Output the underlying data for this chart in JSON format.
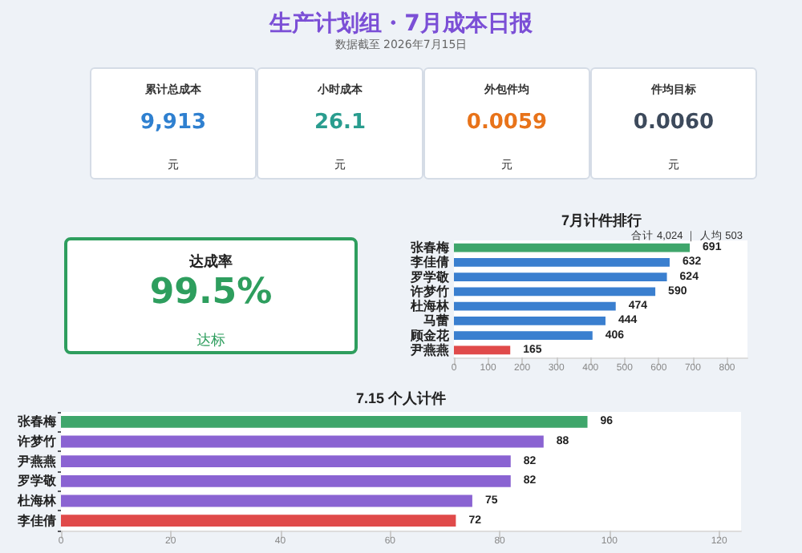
{
  "chart_data": [
    {
      "type": "other",
      "title": "生产计划组・7月成本日报",
      "subtitle": "数据截至 2026年7月15日",
      "categories": [
        "累计总成本",
        "小时成本",
        "外包件均",
        "件均目标"
      ],
      "value_labels": [
        "9,913",
        "26.1",
        "0.0059",
        "0.0060"
      ],
      "annotations": [
        "元",
        "元",
        "元",
        "元"
      ]
    },
    {
      "type": "other",
      "title": "达成率",
      "value_labels": [
        "99.5%"
      ],
      "color": "#2e9e5e",
      "annotations": [
        "达标"
      ]
    },
    {
      "type": "bar",
      "orientation": "horizontal",
      "title": "7月计件排行",
      "subtitle": "合计 4,024 ｜ 人均 503",
      "categories": [
        "张春梅",
        "李佳倩",
        "罗学敬",
        "许梦竹",
        "杜海林",
        "马蕾",
        "顾金花",
        "尹燕燕"
      ],
      "values": [
        691,
        632,
        624,
        590,
        474,
        444,
        406,
        165
      ],
      "colors": [
        "#3fa66b",
        "#3a7fcf",
        "#3a7fcf",
        "#3a7fcf",
        "#3a7fcf",
        "#3a7fcf",
        "#3a7fcf",
        "#e04a4a"
      ],
      "xlim": [
        0,
        860
      ],
      "xticks": [
        0,
        100,
        200,
        300,
        400,
        500,
        600,
        700,
        800
      ],
      "data_labels": true,
      "grid": false
    },
    {
      "type": "bar",
      "orientation": "horizontal",
      "title": "7.15 个人计件",
      "categories": [
        "张春梅",
        "许梦竹",
        "尹燕燕",
        "罗学敬",
        "杜海林",
        "李佳倩"
      ],
      "values": [
        96,
        88,
        82,
        82,
        75,
        72
      ],
      "colors": [
        "#3fa66b",
        "#8a63d2",
        "#8a63d2",
        "#8a63d2",
        "#8a63d2",
        "#e04a4a"
      ],
      "xlim": [
        0,
        124
      ],
      "xticks": [
        0,
        20,
        40,
        60,
        80,
        100,
        120
      ],
      "data_labels": true,
      "grid": false
    }
  ]
}
